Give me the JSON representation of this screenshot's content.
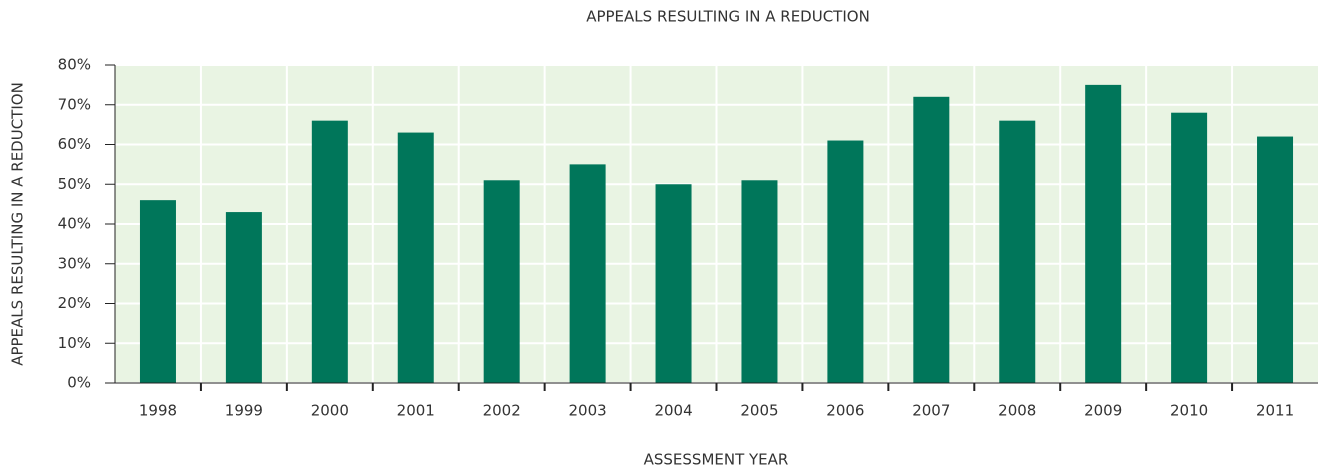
{
  "chart_data": {
    "type": "bar",
    "title": "APPEALS RESULTING IN A REDUCTION",
    "x_label": "ASSESSMENT YEAR",
    "y_label": "APPEALS RESULTING IN A REDUCTION",
    "categories": [
      "1998",
      "1999",
      "2000",
      "2001",
      "2002",
      "2003",
      "2004",
      "2005",
      "2006",
      "2007",
      "2008",
      "2009",
      "2010",
      "2011"
    ],
    "values": [
      46,
      43,
      66,
      63,
      51,
      55,
      50,
      51,
      61,
      72,
      66,
      75,
      68,
      62
    ],
    "color": "#00765a",
    "ylim": [
      0,
      80
    ],
    "yticks": [
      {
        "value": 0,
        "label": "0%"
      },
      {
        "value": 10,
        "label": "10%"
      },
      {
        "value": 20,
        "label": "20%"
      },
      {
        "value": 30,
        "label": "30%"
      },
      {
        "value": 40,
        "label": "40%"
      },
      {
        "value": 50,
        "label": "50%"
      },
      {
        "value": 60,
        "label": "60%"
      },
      {
        "value": 70,
        "label": "70%"
      },
      {
        "value": 80,
        "label": "80%"
      }
    ],
    "grid": true
  }
}
